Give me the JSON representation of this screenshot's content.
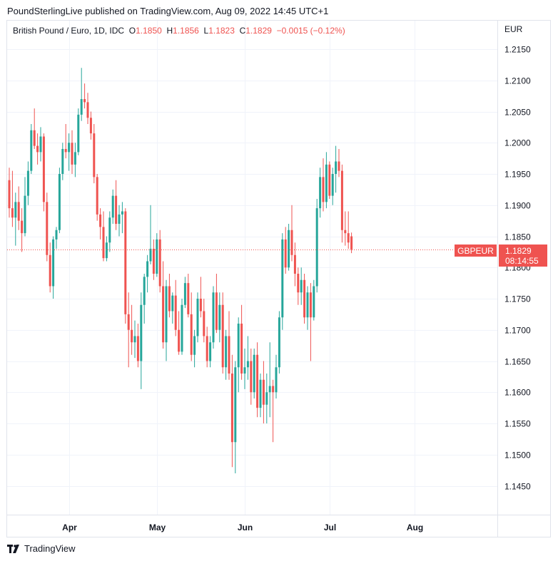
{
  "header": {
    "publisher": "PoundSterlingLive published on TradingView.com, Aug 09, 2022 14:45 UTC+1"
  },
  "legend": {
    "symbol": "British Pound / Euro, 1D, IDC",
    "o_label": "O",
    "o_value": "1.1850",
    "h_label": "H",
    "h_value": "1.1856",
    "l_label": "L",
    "l_value": "1.1823",
    "c_label": "C",
    "c_value": "1.1829",
    "change": "−0.0015 (−0.12%)"
  },
  "footer": {
    "brand": "TradingView"
  },
  "colors": {
    "up": "#26a69a",
    "down": "#ef5350",
    "grid": "#f0f3fa",
    "border": "#e0e3eb",
    "text": "#131722"
  },
  "chart_data": {
    "type": "candlestick",
    "currency_label": "EUR",
    "y_ticks": [
      "1.2150",
      "1.2100",
      "1.2050",
      "1.2000",
      "1.1950",
      "1.1900",
      "1.1850",
      "1.1800",
      "1.1750",
      "1.1700",
      "1.1650",
      "1.1600",
      "1.1550",
      "1.1500",
      "1.1450"
    ],
    "x_labels": [
      {
        "label": "Apr",
        "index": 19
      },
      {
        "label": "May",
        "index": 47
      },
      {
        "label": "Jun",
        "index": 75
      },
      {
        "label": "Jul",
        "index": 102
      },
      {
        "label": "Aug",
        "index": 129
      }
    ],
    "last_price": {
      "symbol": "GBPEUR",
      "price": "1.1829",
      "countdown": "08:14:55",
      "value": 1.1829
    },
    "candles": [
      [
        1.194,
        1.196,
        1.188,
        1.1895
      ],
      [
        1.1895,
        1.1955,
        1.1865,
        1.188
      ],
      [
        1.188,
        1.192,
        1.1835,
        1.1905
      ],
      [
        1.1905,
        1.193,
        1.186,
        1.1875
      ],
      [
        1.1875,
        1.1895,
        1.1825,
        1.1855
      ],
      [
        1.1855,
        1.1945,
        1.185,
        1.1915
      ],
      [
        1.1915,
        1.197,
        1.19,
        1.1955
      ],
      [
        1.1955,
        1.203,
        1.195,
        1.202
      ],
      [
        1.202,
        1.2055,
        1.199,
        1.1995
      ],
      [
        1.1995,
        1.2015,
        1.1965,
        1.1985
      ],
      [
        1.1985,
        1.2025,
        1.197,
        1.201
      ],
      [
        1.201,
        1.2015,
        1.189,
        1.1905
      ],
      [
        1.1905,
        1.192,
        1.181,
        1.182
      ],
      [
        1.182,
        1.184,
        1.176,
        1.177
      ],
      [
        1.177,
        1.185,
        1.175,
        1.1845
      ],
      [
        1.1845,
        1.1865,
        1.183,
        1.186
      ],
      [
        1.186,
        1.196,
        1.1855,
        1.195
      ],
      [
        1.195,
        1.2,
        1.194,
        1.199
      ],
      [
        1.199,
        1.203,
        1.1975,
        1.1985
      ],
      [
        1.1985,
        1.2015,
        1.1955,
        1.2
      ],
      [
        1.2,
        1.202,
        1.195,
        1.1965
      ],
      [
        1.1965,
        1.2,
        1.1945,
        1.1985
      ],
      [
        1.1985,
        1.2055,
        1.198,
        1.2045
      ],
      [
        1.2045,
        1.212,
        1.2035,
        1.207
      ],
      [
        1.207,
        1.2095,
        1.2055,
        1.2065
      ],
      [
        1.2065,
        1.208,
        1.203,
        1.204
      ],
      [
        1.204,
        1.205,
        1.2005,
        1.2015
      ],
      [
        1.2015,
        1.203,
        1.1935,
        1.1945
      ],
      [
        1.1945,
        1.195,
        1.1875,
        1.1885
      ],
      [
        1.1885,
        1.1895,
        1.1845,
        1.1865
      ],
      [
        1.1865,
        1.189,
        1.181,
        1.1815
      ],
      [
        1.1815,
        1.185,
        1.181,
        1.184
      ],
      [
        1.184,
        1.189,
        1.1825,
        1.188
      ],
      [
        1.188,
        1.1925,
        1.187,
        1.1915
      ],
      [
        1.1915,
        1.194,
        1.186,
        1.187
      ],
      [
        1.187,
        1.19,
        1.185,
        1.1885
      ],
      [
        1.1885,
        1.1905,
        1.1855,
        1.189
      ],
      [
        1.189,
        1.1895,
        1.171,
        1.1725
      ],
      [
        1.1725,
        1.176,
        1.164,
        1.17
      ],
      [
        1.17,
        1.174,
        1.166,
        1.168
      ],
      [
        1.168,
        1.1715,
        1.1655,
        1.169
      ],
      [
        1.169,
        1.171,
        1.164,
        1.165
      ],
      [
        1.165,
        1.176,
        1.1605,
        1.174
      ],
      [
        1.174,
        1.179,
        1.171,
        1.1785
      ],
      [
        1.1785,
        1.182,
        1.176,
        1.181
      ],
      [
        1.181,
        1.19,
        1.1805,
        1.183
      ],
      [
        1.183,
        1.1845,
        1.178,
        1.179
      ],
      [
        1.179,
        1.1855,
        1.1785,
        1.1845
      ],
      [
        1.1845,
        1.186,
        1.176,
        1.177
      ],
      [
        1.177,
        1.181,
        1.167,
        1.168
      ],
      [
        1.168,
        1.178,
        1.165,
        1.177
      ],
      [
        1.177,
        1.179,
        1.172,
        1.173
      ],
      [
        1.173,
        1.176,
        1.171,
        1.1755
      ],
      [
        1.1755,
        1.178,
        1.169,
        1.17
      ],
      [
        1.17,
        1.173,
        1.166,
        1.1665
      ],
      [
        1.1665,
        1.175,
        1.166,
        1.174
      ],
      [
        1.174,
        1.1785,
        1.1735,
        1.1775
      ],
      [
        1.1775,
        1.179,
        1.172,
        1.1725
      ],
      [
        1.1725,
        1.176,
        1.165,
        1.166
      ],
      [
        1.166,
        1.17,
        1.164,
        1.169
      ],
      [
        1.169,
        1.176,
        1.168,
        1.175
      ],
      [
        1.175,
        1.1785,
        1.172,
        1.173
      ],
      [
        1.173,
        1.175,
        1.168,
        1.169
      ],
      [
        1.169,
        1.1705,
        1.164,
        1.165
      ],
      [
        1.165,
        1.169,
        1.164,
        1.168
      ],
      [
        1.168,
        1.177,
        1.167,
        1.176
      ],
      [
        1.176,
        1.179,
        1.1695,
        1.17
      ],
      [
        1.17,
        1.176,
        1.168,
        1.174
      ],
      [
        1.174,
        1.176,
        1.163,
        1.164
      ],
      [
        1.164,
        1.17,
        1.162,
        1.169
      ],
      [
        1.169,
        1.173,
        1.162,
        1.163
      ],
      [
        1.163,
        1.166,
        1.148,
        1.152
      ],
      [
        1.152,
        1.165,
        1.147,
        1.164
      ],
      [
        1.164,
        1.172,
        1.16,
        1.171
      ],
      [
        1.171,
        1.174,
        1.162,
        1.163
      ],
      [
        1.163,
        1.167,
        1.1605,
        1.164
      ],
      [
        1.164,
        1.169,
        1.162,
        1.165
      ],
      [
        1.165,
        1.167,
        1.158,
        1.16
      ],
      [
        1.16,
        1.167,
        1.159,
        1.166
      ],
      [
        1.166,
        1.168,
        1.156,
        1.1575
      ],
      [
        1.1575,
        1.163,
        1.156,
        1.162
      ],
      [
        1.162,
        1.165,
        1.155,
        1.158
      ],
      [
        1.158,
        1.163,
        1.155,
        1.16
      ],
      [
        1.16,
        1.168,
        1.156,
        1.161
      ],
      [
        1.161,
        1.162,
        1.152,
        1.16
      ],
      [
        1.16,
        1.166,
        1.159,
        1.164
      ],
      [
        1.164,
        1.173,
        1.163,
        1.172
      ],
      [
        1.172,
        1.1855,
        1.17,
        1.1845
      ],
      [
        1.1845,
        1.1865,
        1.179,
        1.18
      ],
      [
        1.18,
        1.187,
        1.1795,
        1.186
      ],
      [
        1.186,
        1.19,
        1.181,
        1.182
      ],
      [
        1.182,
        1.184,
        1.177,
        1.179
      ],
      [
        1.179,
        1.18,
        1.174,
        1.176
      ],
      [
        1.176,
        1.18,
        1.174,
        1.178
      ],
      [
        1.178,
        1.179,
        1.171,
        1.172
      ],
      [
        1.172,
        1.177,
        1.17,
        1.176
      ],
      [
        1.176,
        1.1775,
        1.165,
        1.172
      ],
      [
        1.172,
        1.178,
        1.1715,
        1.177
      ],
      [
        1.177,
        1.191,
        1.176,
        1.1895
      ],
      [
        1.1895,
        1.196,
        1.188,
        1.1945
      ],
      [
        1.1945,
        1.1975,
        1.189,
        1.1905
      ],
      [
        1.1905,
        1.1985,
        1.1895,
        1.1965
      ],
      [
        1.1965,
        1.197,
        1.191,
        1.1915
      ],
      [
        1.1915,
        1.196,
        1.19,
        1.195
      ],
      [
        1.195,
        1.1995,
        1.192,
        1.197
      ],
      [
        1.197,
        1.199,
        1.1945,
        1.1955
      ],
      [
        1.1955,
        1.1965,
        1.184,
        1.186
      ],
      [
        1.186,
        1.189,
        1.1835,
        1.1855
      ],
      [
        1.1855,
        1.189,
        1.183,
        1.184
      ],
      [
        1.185,
        1.1856,
        1.1823,
        1.1829
      ]
    ]
  }
}
